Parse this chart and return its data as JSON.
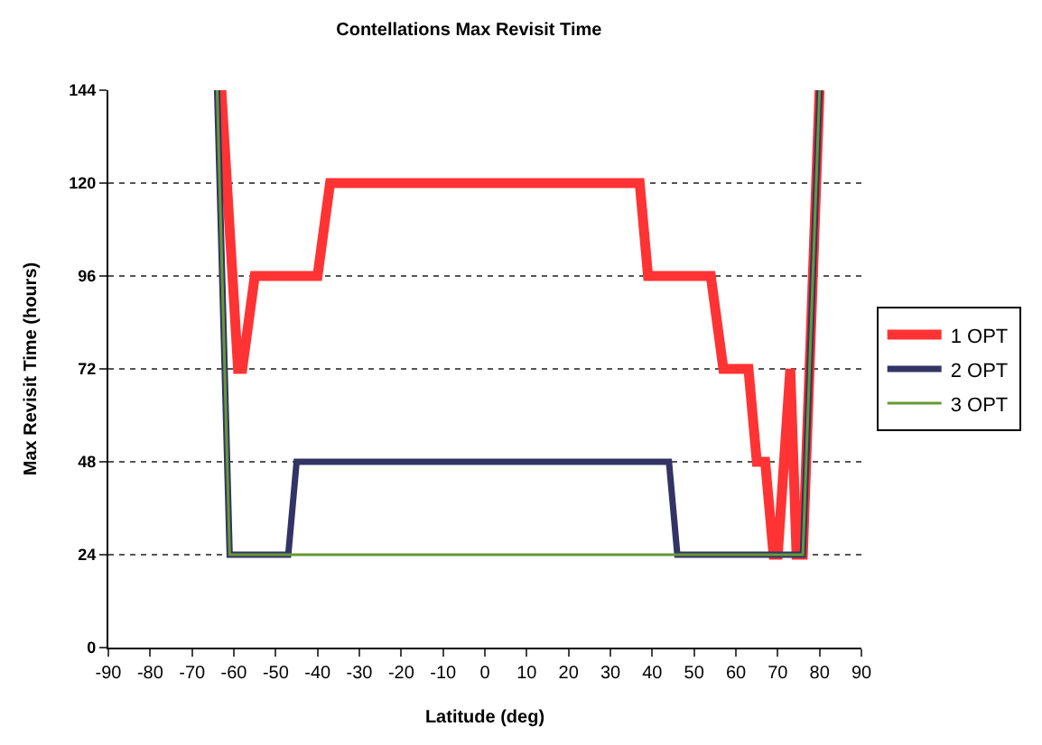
{
  "chart_data": {
    "type": "line",
    "title": "Contellations Max Revisit Time",
    "xlabel": "Latitude (deg)",
    "ylabel": "Max Revisit Time (hours)",
    "xlim": [
      -90,
      90
    ],
    "xticks": [
      -90,
      -80,
      -70,
      -60,
      -50,
      -40,
      -30,
      -20,
      -10,
      0,
      10,
      20,
      30,
      40,
      50,
      60,
      70,
      80,
      90
    ],
    "ylim": [
      0,
      144
    ],
    "yticks": [
      0,
      24,
      48,
      72,
      96,
      120,
      144
    ],
    "grid": "y",
    "legend": "right",
    "marker": "none",
    "line_style": "solid",
    "series": [
      {
        "name": "1 OPT",
        "color": "#ff3333",
        "x": [
          -63,
          -59,
          -58,
          -55,
          -40,
          -37,
          37,
          39,
          54,
          57,
          63,
          65,
          67,
          69,
          70,
          73,
          74.5,
          76,
          80
        ],
        "values": [
          144,
          72,
          72,
          96,
          96,
          120,
          120,
          96,
          96,
          72,
          72,
          48,
          48,
          24,
          24,
          72,
          24,
          24,
          144
        ]
      },
      {
        "name": "2 OPT",
        "color": "#333366",
        "x": [
          -64,
          -61,
          -47,
          -45,
          44,
          46,
          76,
          80
        ],
        "values": [
          144,
          24,
          24,
          48,
          48,
          24,
          24,
          144
        ]
      },
      {
        "name": "3 OPT",
        "color": "#669933",
        "x": [
          -64,
          -61,
          76,
          80
        ],
        "values": [
          144,
          24,
          24,
          144
        ]
      }
    ]
  }
}
